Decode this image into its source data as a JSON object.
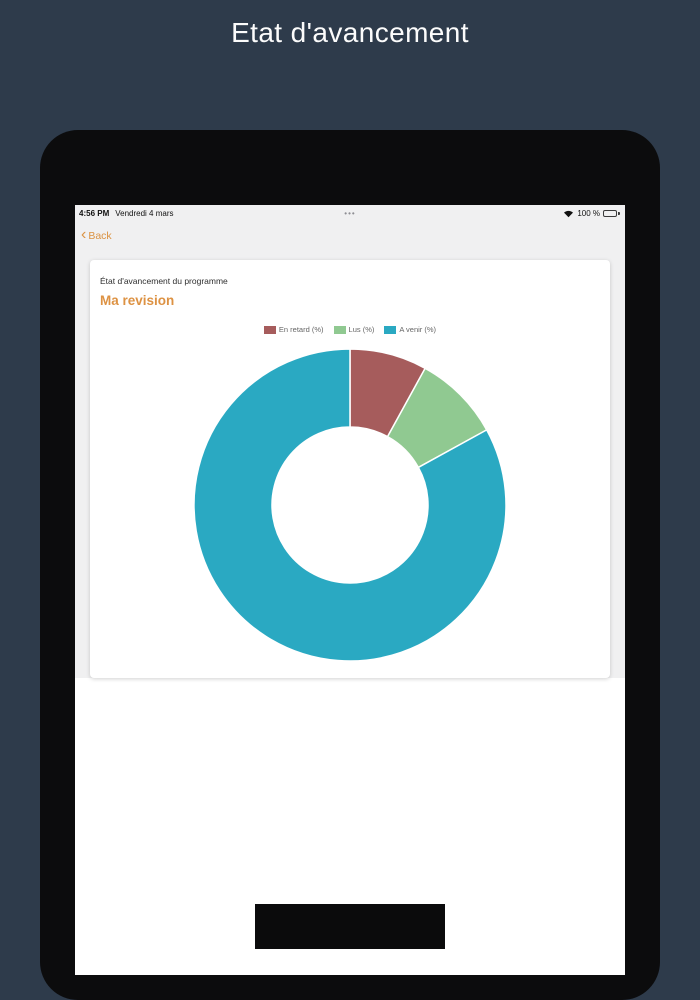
{
  "page": {
    "title": "Etat d'avancement"
  },
  "status_bar": {
    "time": "4:56 PM",
    "date": "Vendredi 4 mars",
    "dots": "•••",
    "battery_percent": "100 %"
  },
  "nav": {
    "back_chevron": "‹",
    "back_label": "Back"
  },
  "card": {
    "subtitle": "État d'avancement du programme",
    "title": "Ma revision"
  },
  "chart_data": {
    "type": "doughnut",
    "title": "Ma revision",
    "legend_position": "top",
    "cutout_percent": 50,
    "border_color": "#ffffff",
    "series": [
      {
        "label": "En retard (%)",
        "value": 8,
        "color": "#a65c5c"
      },
      {
        "label": "Lus (%)",
        "value": 9,
        "color": "#90c991"
      },
      {
        "label": "A venir (%)",
        "value": 83,
        "color": "#2aa9c2"
      }
    ]
  },
  "colors": {
    "accent_orange": "#dd9243",
    "page_background": "#2e3b4b",
    "device_frame": "#0c0c0d"
  }
}
